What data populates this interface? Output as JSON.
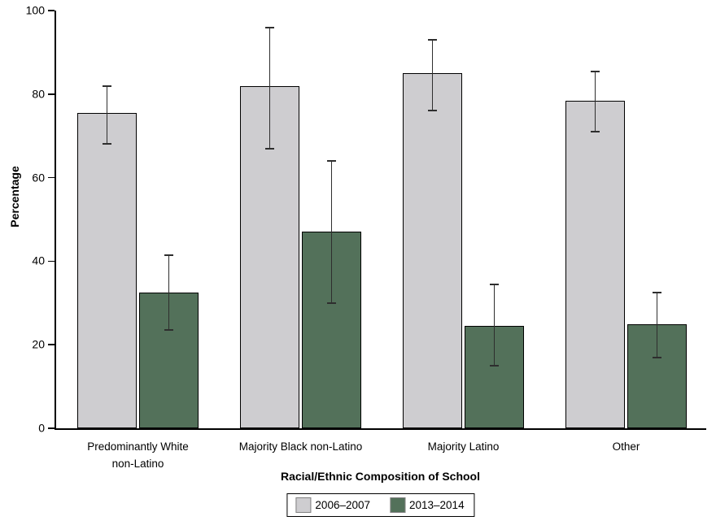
{
  "chart_data": {
    "type": "bar",
    "title": "",
    "xlabel": "Racial/Ethnic Composition of School",
    "ylabel": "Percentage",
    "ylim": [
      0,
      100
    ],
    "yticks": [
      0,
      20,
      40,
      60,
      80,
      100
    ],
    "grid": false,
    "error_bars": true,
    "legend_position": "bottom",
    "categories": [
      "Predominantly White\nnon-Latino",
      "Majority Black non-Latino",
      "Majority Latino",
      "Other"
    ],
    "series": [
      {
        "name": "2006–2007",
        "color": "#cecdd0",
        "values": [
          75.5,
          82,
          85,
          78.5
        ],
        "ci_low": [
          68,
          67,
          76,
          71
        ],
        "ci_high": [
          82,
          96,
          93,
          85.5
        ]
      },
      {
        "name": "2013–2014",
        "color": "#53715a",
        "values": [
          32.5,
          47,
          24.5,
          25
        ],
        "ci_low": [
          23.5,
          30,
          15,
          17
        ],
        "ci_high": [
          41.5,
          64,
          34.5,
          32.5
        ]
      }
    ],
    "colors": {
      "background": "#ffffff",
      "axis": "#000000",
      "bar_outline": "#000000",
      "error_bar": "#2e2e2e",
      "swatch_border": "#808080"
    }
  }
}
